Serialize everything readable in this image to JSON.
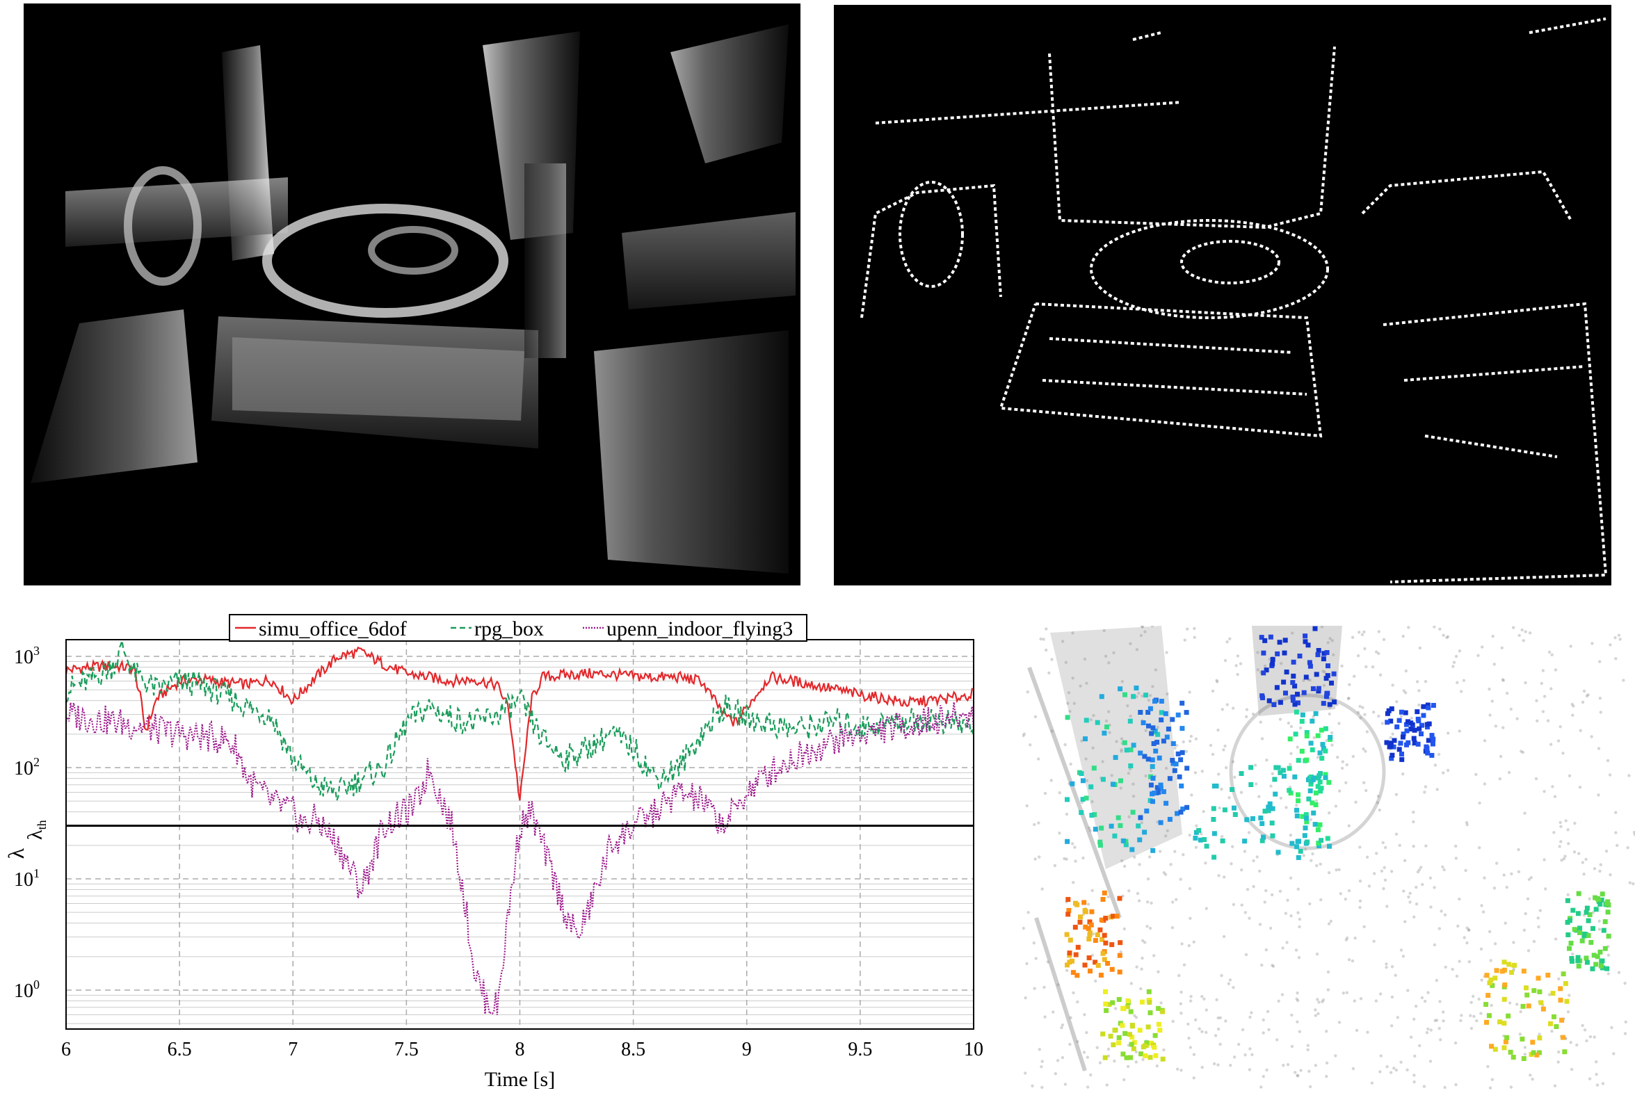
{
  "chart_data": {
    "type": "line",
    "title": "",
    "xlabel": "Time [s]",
    "ylabel": "λ",
    "threshold_label": "λ",
    "threshold_sub": "th",
    "threshold_value": 30,
    "xlim": [
      6,
      10
    ],
    "ylim_log10": [
      -0.35,
      3.15
    ],
    "yscale": "log",
    "grid": true,
    "legend_position": "top",
    "x_ticks": [
      "6",
      "6.5",
      "7",
      "7.5",
      "8",
      "8.5",
      "9",
      "9.5",
      "10"
    ],
    "y_ticks": [
      {
        "base": "10",
        "exp": "0"
      },
      {
        "base": "10",
        "exp": "1"
      },
      {
        "base": "10",
        "exp": "2"
      },
      {
        "base": "10",
        "exp": "3"
      }
    ],
    "series": [
      {
        "name": "simu_office_6dof",
        "color": "#e3282b",
        "style": "solid",
        "x": [
          6.0,
          6.1,
          6.2,
          6.3,
          6.33,
          6.35,
          6.4,
          6.5,
          6.6,
          6.7,
          6.8,
          6.9,
          7.0,
          7.1,
          7.2,
          7.3,
          7.4,
          7.5,
          7.6,
          7.7,
          7.8,
          7.9,
          7.95,
          8.0,
          8.05,
          8.1,
          8.2,
          8.3,
          8.4,
          8.5,
          8.6,
          8.7,
          8.8,
          8.9,
          8.95,
          9.0,
          9.1,
          9.2,
          9.3,
          9.4,
          9.5,
          9.6,
          9.7,
          9.8,
          9.9,
          10.0
        ],
        "values": [
          750,
          800,
          820,
          780,
          400,
          210,
          420,
          600,
          620,
          580,
          560,
          620,
          400,
          650,
          1000,
          1100,
          850,
          700,
          650,
          600,
          620,
          550,
          350,
          50,
          400,
          650,
          680,
          700,
          690,
          660,
          650,
          650,
          600,
          300,
          250,
          350,
          650,
          600,
          550,
          500,
          450,
          420,
          380,
          400,
          420,
          460
        ]
      },
      {
        "name": "rpg_box",
        "color": "#1a9c5a",
        "style": "dashed",
        "x": [
          6.0,
          6.1,
          6.2,
          6.25,
          6.3,
          6.4,
          6.5,
          6.6,
          6.7,
          6.8,
          6.9,
          7.0,
          7.1,
          7.2,
          7.3,
          7.4,
          7.5,
          7.6,
          7.7,
          7.8,
          7.9,
          8.0,
          8.1,
          8.2,
          8.3,
          8.4,
          8.5,
          8.6,
          8.7,
          8.8,
          8.9,
          9.0,
          9.1,
          9.2,
          9.3,
          9.4,
          9.5,
          9.6,
          9.7,
          9.8,
          9.9,
          10.0
        ],
        "values": [
          500,
          600,
          800,
          1200,
          700,
          500,
          600,
          550,
          450,
          350,
          300,
          120,
          70,
          60,
          80,
          100,
          250,
          350,
          280,
          250,
          300,
          400,
          180,
          120,
          150,
          200,
          150,
          80,
          100,
          200,
          350,
          280,
          250,
          220,
          240,
          260,
          230,
          250,
          260,
          270,
          250,
          230
        ]
      },
      {
        "name": "upenn_indoor_flying3",
        "color": "#9c1a8c",
        "style": "dotted",
        "x": [
          6.0,
          6.1,
          6.2,
          6.3,
          6.4,
          6.5,
          6.6,
          6.7,
          6.75,
          6.8,
          6.9,
          7.0,
          7.05,
          7.1,
          7.2,
          7.3,
          7.35,
          7.4,
          7.5,
          7.55,
          7.6,
          7.7,
          7.75,
          7.8,
          7.85,
          7.9,
          7.95,
          8.0,
          8.05,
          8.1,
          8.15,
          8.2,
          8.25,
          8.3,
          8.35,
          8.4,
          8.5,
          8.6,
          8.7,
          8.8,
          8.9,
          9.0,
          9.1,
          9.2,
          9.3,
          9.4,
          9.5,
          9.6,
          9.7,
          9.8,
          9.9,
          10.0
        ],
        "values": [
          300,
          280,
          260,
          240,
          220,
          200,
          190,
          180,
          150,
          80,
          50,
          40,
          30,
          35,
          20,
          8,
          15,
          30,
          40,
          50,
          100,
          30,
          8,
          1.5,
          0.8,
          0.7,
          5,
          30,
          40,
          20,
          10,
          5,
          3,
          5,
          10,
          20,
          30,
          40,
          60,
          50,
          30,
          60,
          90,
          120,
          150,
          180,
          200,
          220,
          240,
          260,
          280,
          300
        ]
      }
    ]
  },
  "panels": {
    "top_left": "depth-map",
    "top_right": "edge-map",
    "bottom_right": "colored-points"
  }
}
